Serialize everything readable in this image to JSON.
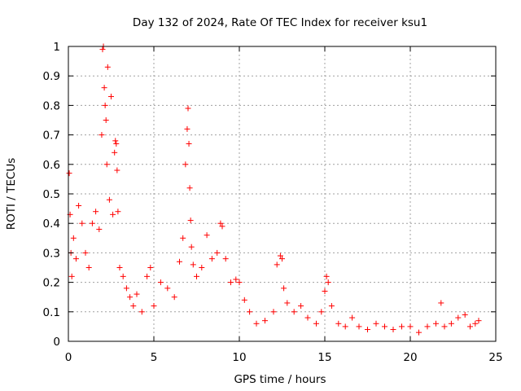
{
  "chart_data": {
    "type": "scatter",
    "title": "Day 132 of 2024, Rate Of TEC Index for receiver ksu1",
    "xlabel": "GPS time / hours",
    "ylabel": "ROTI / TECUs",
    "xlim": [
      0,
      25
    ],
    "ylim": [
      0,
      1
    ],
    "xticks": [
      0,
      5,
      10,
      15,
      20,
      25
    ],
    "yticks": [
      0,
      0.1,
      0.2,
      0.3,
      0.4,
      0.5,
      0.6,
      0.7,
      0.8,
      0.9,
      1
    ],
    "grid": true,
    "marker": "+",
    "color": "#ff0000",
    "series": [
      {
        "name": "ROTI",
        "x": [
          0.05,
          0.1,
          0.15,
          0.2,
          0.3,
          0.45,
          0.6,
          0.8,
          1.0,
          1.2,
          1.4,
          1.6,
          1.8,
          1.95,
          2.0,
          2.05,
          2.1,
          2.15,
          2.2,
          2.25,
          2.3,
          2.4,
          2.5,
          2.6,
          2.7,
          2.75,
          2.8,
          2.85,
          2.9,
          3.0,
          3.2,
          3.4,
          3.6,
          3.8,
          4.0,
          4.3,
          4.6,
          4.8,
          5.0,
          5.4,
          5.8,
          6.2,
          6.5,
          6.7,
          6.85,
          6.95,
          7.0,
          7.05,
          7.1,
          7.15,
          7.2,
          7.3,
          7.5,
          7.8,
          8.1,
          8.4,
          8.7,
          8.9,
          9.0,
          9.2,
          9.5,
          9.8,
          10.0,
          10.3,
          10.6,
          11.0,
          11.5,
          12.0,
          12.2,
          12.4,
          12.5,
          12.6,
          12.8,
          13.2,
          13.6,
          14.0,
          14.5,
          14.8,
          15.0,
          15.1,
          15.2,
          15.4,
          15.8,
          16.2,
          16.6,
          17.0,
          17.5,
          18.0,
          18.5,
          19.0,
          19.5,
          20.0,
          20.5,
          21.0,
          21.5,
          21.8,
          22.0,
          22.4,
          22.8,
          23.2,
          23.5,
          23.8,
          24.0
        ],
        "y": [
          0.57,
          0.43,
          0.3,
          0.22,
          0.35,
          0.28,
          0.46,
          0.4,
          0.3,
          0.25,
          0.4,
          0.44,
          0.38,
          0.7,
          0.99,
          1.0,
          0.86,
          0.8,
          0.75,
          0.6,
          0.93,
          0.48,
          0.83,
          0.43,
          0.64,
          0.68,
          0.67,
          0.58,
          0.44,
          0.25,
          0.22,
          0.18,
          0.15,
          0.12,
          0.16,
          0.1,
          0.22,
          0.25,
          0.12,
          0.2,
          0.18,
          0.15,
          0.27,
          0.35,
          0.6,
          0.72,
          0.79,
          0.67,
          0.52,
          0.41,
          0.32,
          0.26,
          0.22,
          0.25,
          0.36,
          0.28,
          0.3,
          0.4,
          0.39,
          0.28,
          0.2,
          0.21,
          0.2,
          0.14,
          0.1,
          0.06,
          0.07,
          0.1,
          0.26,
          0.29,
          0.28,
          0.18,
          0.13,
          0.1,
          0.12,
          0.08,
          0.06,
          0.1,
          0.17,
          0.22,
          0.2,
          0.12,
          0.06,
          0.05,
          0.08,
          0.05,
          0.04,
          0.06,
          0.05,
          0.04,
          0.05,
          0.05,
          0.03,
          0.05,
          0.06,
          0.13,
          0.05,
          0.06,
          0.08,
          0.09,
          0.05,
          0.06,
          0.07
        ]
      }
    ]
  }
}
